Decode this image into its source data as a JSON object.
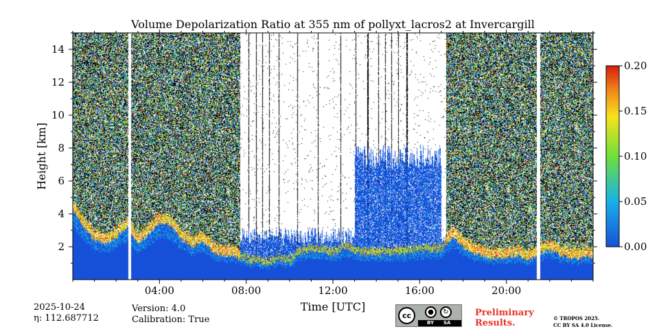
{
  "chart_data": {
    "type": "heatmap",
    "title": "Volume Depolarization Ratio at 355 nm of pollyxt_lacros2 at Invercargill",
    "xlabel": "Time [UTC]",
    "ylabel": "Height [km]",
    "xlim": [
      0,
      24
    ],
    "ylim": [
      0,
      15
    ],
    "x_ticks": [
      4,
      8,
      12,
      16,
      20
    ],
    "x_tick_labels": [
      "04:00",
      "08:00",
      "12:00",
      "16:00",
      "20:00"
    ],
    "y_ticks": [
      2,
      4,
      6,
      8,
      10,
      12,
      14
    ],
    "y_tick_labels": [
      "2",
      "4",
      "6",
      "8",
      "10",
      "12",
      "14"
    ],
    "colorbar": {
      "range": [
        0,
        0.2
      ],
      "ticks": [
        0,
        0.05,
        0.1,
        0.15,
        0.2
      ],
      "tick_labels": [
        "0.00",
        "0.05",
        "0.10",
        "0.15",
        "0.20"
      ],
      "colormap": "jet"
    },
    "colors": {
      "low": "#1750d8",
      "cyan": "#19c3e0",
      "green": "#60e03a",
      "yellow": "#f8e21c",
      "orange": "#f08a1a",
      "high": "#d81c10",
      "noise_dark": "#000000",
      "no_data": "#ffffff"
    },
    "data_gaps_hours": [
      [
        2.55,
        2.68
      ],
      [
        21.4,
        21.55
      ]
    ],
    "cloud_base_profile_km": [
      [
        0,
        4.2
      ],
      [
        0.5,
        3.2
      ],
      [
        1.0,
        2.4
      ],
      [
        1.5,
        2.2
      ],
      [
        2.0,
        2.6
      ],
      [
        2.5,
        3.2
      ],
      [
        3.0,
        2.2
      ],
      [
        3.5,
        2.8
      ],
      [
        4.0,
        3.5
      ],
      [
        4.5,
        3.3
      ],
      [
        5.0,
        2.5
      ],
      [
        5.5,
        2.0
      ],
      [
        6.0,
        2.4
      ],
      [
        6.5,
        1.6
      ],
      [
        7.0,
        1.5
      ],
      [
        7.5,
        1.4
      ],
      [
        8.0,
        1.1
      ],
      [
        8.5,
        1.0
      ],
      [
        9.0,
        0.9
      ],
      [
        9.5,
        1.2
      ],
      [
        10.0,
        1.0
      ],
      [
        10.5,
        1.6
      ],
      [
        11.0,
        1.8
      ],
      [
        11.5,
        1.7
      ],
      [
        12.0,
        1.5
      ],
      [
        12.5,
        1.9
      ],
      [
        13.0,
        1.6
      ],
      [
        14.0,
        1.5
      ],
      [
        15.0,
        1.6
      ],
      [
        16.0,
        1.7
      ],
      [
        17.0,
        1.8
      ],
      [
        17.5,
        2.6
      ],
      [
        18.0,
        2.0
      ],
      [
        18.5,
        1.6
      ],
      [
        19.0,
        1.4
      ],
      [
        19.5,
        1.3
      ],
      [
        20.0,
        1.4
      ],
      [
        20.5,
        1.5
      ],
      [
        21.0,
        1.2
      ],
      [
        21.5,
        1.6
      ],
      [
        22.0,
        1.8
      ],
      [
        22.5,
        1.5
      ],
      [
        23.0,
        1.3
      ],
      [
        24.0,
        1.4
      ]
    ]
  },
  "footer": {
    "date": "2025-10-24",
    "eta": "η: 112.687712",
    "version": "Version: 4.0",
    "calibration": "Calibration: True",
    "preliminary_line1": "Preliminary",
    "preliminary_line2": "Results.",
    "copyright_line1": "© TROPOS 2025.",
    "copyright_line2": "CC BY SA 4.0 License.",
    "cc_text": "cc",
    "by_text": "BY",
    "sa_text": "SA"
  }
}
